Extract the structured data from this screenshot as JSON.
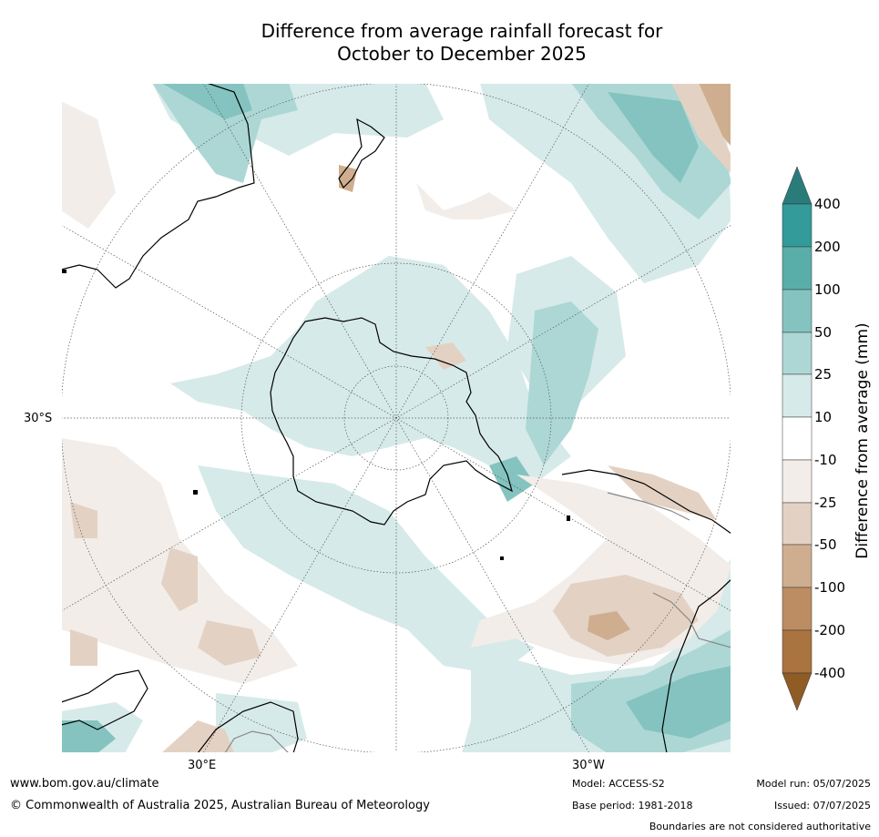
{
  "title": {
    "line1": "Difference from average rainfall forecast for",
    "line2": "October to December 2025"
  },
  "map": {
    "projection": "south-polar-stereographic",
    "lat_label": "30°S",
    "lon_labels": [
      "30°E",
      "30°W"
    ],
    "regions_visible": [
      "Antarctica",
      "Australia",
      "New Zealand",
      "South America",
      "Africa"
    ]
  },
  "colorbar": {
    "title": "Difference from average (mm)",
    "ticks": [
      "400",
      "200",
      "100",
      "50",
      "25",
      "10",
      "-10",
      "-25",
      "-50",
      "-100",
      "-200",
      "-400"
    ],
    "colors": {
      "over": "#2a7c7a",
      "gt200": "#339b99",
      "100_200": "#5aaeaa",
      "50_100": "#84c3c0",
      "25_50": "#add7d5",
      "10_25": "#d6eae9",
      "neutral": "#ffffff",
      "m10_m25": "#f2ede8",
      "m25_m50": "#e3d2c3",
      "m50_m100": "#cfae8f",
      "m100_m200": "#bc8d62",
      "m200_m400": "#aa7440",
      "under": "#8f5c25"
    }
  },
  "footer": {
    "website": "www.bom.gov.au/climate",
    "copyright": "© Commonwealth of Australia 2025, Australian Bureau of Meteorology",
    "model": "Model: ACCESS-S2",
    "base_period": "Base period: 1981-2018",
    "model_run": "Model run: 05/07/2025",
    "issued": "Issued: 07/07/2025",
    "disclaimer": "Boundaries are not considered authoritative"
  }
}
